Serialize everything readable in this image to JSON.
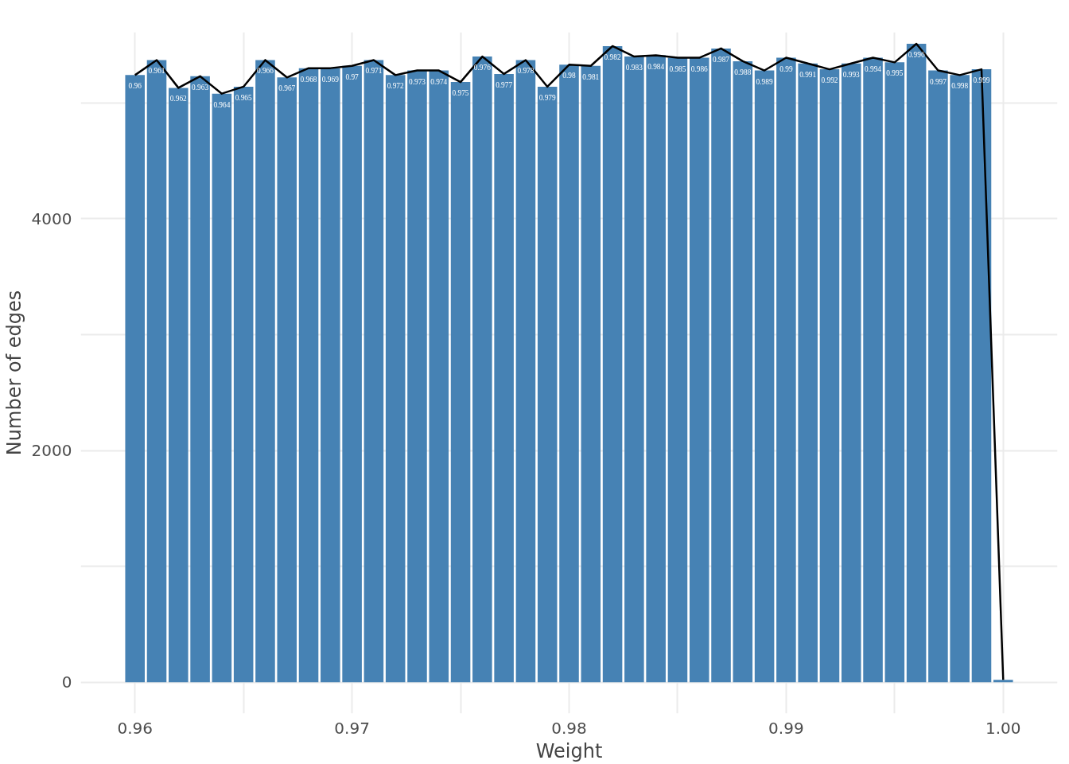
{
  "chart_data": {
    "type": "bar",
    "xlabel": "Weight",
    "ylabel": "Number of edges",
    "x": [
      0.96,
      0.961,
      0.962,
      0.963,
      0.964,
      0.965,
      0.966,
      0.967,
      0.968,
      0.969,
      0.97,
      0.971,
      0.972,
      0.973,
      0.974,
      0.975,
      0.976,
      0.977,
      0.978,
      0.979,
      0.98,
      0.981,
      0.982,
      0.983,
      0.984,
      0.985,
      0.986,
      0.987,
      0.988,
      0.989,
      0.99,
      0.991,
      0.992,
      0.993,
      0.994,
      0.995,
      0.996,
      0.997,
      0.998,
      0.999,
      1.0
    ],
    "series": [
      {
        "color": "#4682b4",
        "values": [
          5240,
          5370,
          5130,
          5230,
          5080,
          5140,
          5370,
          5220,
          5300,
          5300,
          5320,
          5370,
          5240,
          5280,
          5280,
          5180,
          5400,
          5250,
          5370,
          5140,
          5330,
          5320,
          5490,
          5400,
          5410,
          5390,
          5390,
          5470,
          5360,
          5280,
          5390,
          5340,
          5290,
          5340,
          5390,
          5350,
          5510,
          5280,
          5240,
          5290,
          20
        ]
      },
      {
        "type": "line",
        "color": "#000000",
        "values": [
          5240,
          5370,
          5130,
          5230,
          5080,
          5140,
          5370,
          5220,
          5300,
          5300,
          5320,
          5370,
          5240,
          5280,
          5280,
          5180,
          5400,
          5250,
          5370,
          5140,
          5330,
          5320,
          5490,
          5400,
          5410,
          5390,
          5390,
          5470,
          5360,
          5280,
          5390,
          5340,
          5290,
          5340,
          5390,
          5350,
          5510,
          5280,
          5240,
          5290,
          20
        ]
      }
    ],
    "annotations": [
      {
        "text": "0.96",
        "x": 0.96,
        "y": 5240
      },
      {
        "text": "0.961",
        "x": 0.961,
        "y": 5370
      },
      {
        "text": "0.962",
        "x": 0.962,
        "y": 5130
      },
      {
        "text": "0.963",
        "x": 0.963,
        "y": 5230
      },
      {
        "text": "0.964",
        "x": 0.964,
        "y": 5080
      },
      {
        "text": "0.965",
        "x": 0.965,
        "y": 5140
      },
      {
        "text": "0.966",
        "x": 0.966,
        "y": 5370
      },
      {
        "text": "0.967",
        "x": 0.967,
        "y": 5220
      },
      {
        "text": "0.968",
        "x": 0.968,
        "y": 5300
      },
      {
        "text": "0.969",
        "x": 0.969,
        "y": 5300
      },
      {
        "text": "0.97",
        "x": 0.97,
        "y": 5320
      },
      {
        "text": "0.971",
        "x": 0.971,
        "y": 5370
      },
      {
        "text": "0.972",
        "x": 0.972,
        "y": 5240
      },
      {
        "text": "0.973",
        "x": 0.973,
        "y": 5280
      },
      {
        "text": "0.974",
        "x": 0.974,
        "y": 5280
      },
      {
        "text": "0.975",
        "x": 0.975,
        "y": 5180
      },
      {
        "text": "0.976",
        "x": 0.976,
        "y": 5400
      },
      {
        "text": "0.977",
        "x": 0.977,
        "y": 5250
      },
      {
        "text": "0.978",
        "x": 0.978,
        "y": 5370
      },
      {
        "text": "0.979",
        "x": 0.979,
        "y": 5140
      },
      {
        "text": "0.98",
        "x": 0.98,
        "y": 5330
      },
      {
        "text": "0.981",
        "x": 0.981,
        "y": 5320
      },
      {
        "text": "0.982",
        "x": 0.982,
        "y": 5490
      },
      {
        "text": "0.983",
        "x": 0.983,
        "y": 5400
      },
      {
        "text": "0.984",
        "x": 0.984,
        "y": 5410
      },
      {
        "text": "0.985",
        "x": 0.985,
        "y": 5390
      },
      {
        "text": "0.986",
        "x": 0.986,
        "y": 5390
      },
      {
        "text": "0.987",
        "x": 0.987,
        "y": 5470
      },
      {
        "text": "0.988",
        "x": 0.988,
        "y": 5360
      },
      {
        "text": "0.989",
        "x": 0.989,
        "y": 5280
      },
      {
        "text": "0.99",
        "x": 0.99,
        "y": 5390
      },
      {
        "text": "0.991",
        "x": 0.991,
        "y": 5340
      },
      {
        "text": "0.992",
        "x": 0.992,
        "y": 5290
      },
      {
        "text": "0.993",
        "x": 0.993,
        "y": 5340
      },
      {
        "text": "0.994",
        "x": 0.994,
        "y": 5390
      },
      {
        "text": "0.995",
        "x": 0.995,
        "y": 5350
      },
      {
        "text": "0.996",
        "x": 0.996,
        "y": 5510
      },
      {
        "text": "0.997",
        "x": 0.997,
        "y": 5280
      },
      {
        "text": "0.998",
        "x": 0.998,
        "y": 5240
      },
      {
        "text": "0.999",
        "x": 0.999,
        "y": 5290
      }
    ],
    "xlim": [
      0.9575,
      1.0025
    ],
    "xticks": [
      0.96,
      {
        "value": 0.965,
        "label": null
      },
      0.97,
      {
        "value": 0.975,
        "label": null
      },
      0.98,
      {
        "value": 0.985,
        "label": null
      },
      0.99,
      {
        "value": 0.995,
        "label": null
      },
      {
        "value": 1.0,
        "label": "1.00"
      }
    ],
    "ylim": [
      -270,
      5610
    ],
    "yticks": [
      0,
      {
        "value": 1000,
        "label": null
      },
      2000,
      {
        "value": 3000,
        "label": null
      },
      4000,
      {
        "value": 5000,
        "label": null
      }
    ],
    "grid": true
  }
}
